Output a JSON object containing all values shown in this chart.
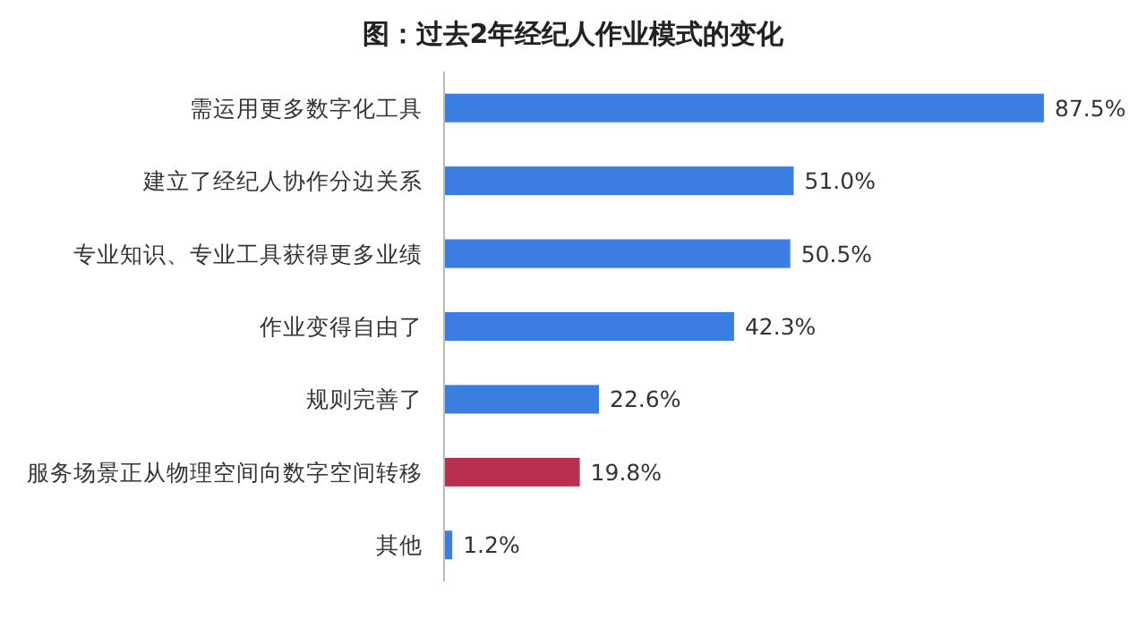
{
  "chart_data": {
    "type": "bar",
    "orientation": "horizontal",
    "title": "图：过去2年经纪人作业模式的变化",
    "categories": [
      "需运用更多数字化工具",
      "建立了经纪人协作分边关系",
      "专业知识、专业工具获得更多业绩",
      "作业变得自由了",
      "规则完善了",
      "服务场景正从物理空间向数字空间转移",
      "其他"
    ],
    "values": [
      87.5,
      51.0,
      50.5,
      42.3,
      22.6,
      19.8,
      1.2
    ],
    "colors": [
      "#3b7de0",
      "#3b7de0",
      "#3b7de0",
      "#3b7de0",
      "#3b7de0",
      "#b9304f",
      "#3b7de0"
    ],
    "value_labels": [
      "87.5%",
      "51.0%",
      "50.5%",
      "42.3%",
      "22.6%",
      "19.8%",
      "1.2%"
    ]
  }
}
